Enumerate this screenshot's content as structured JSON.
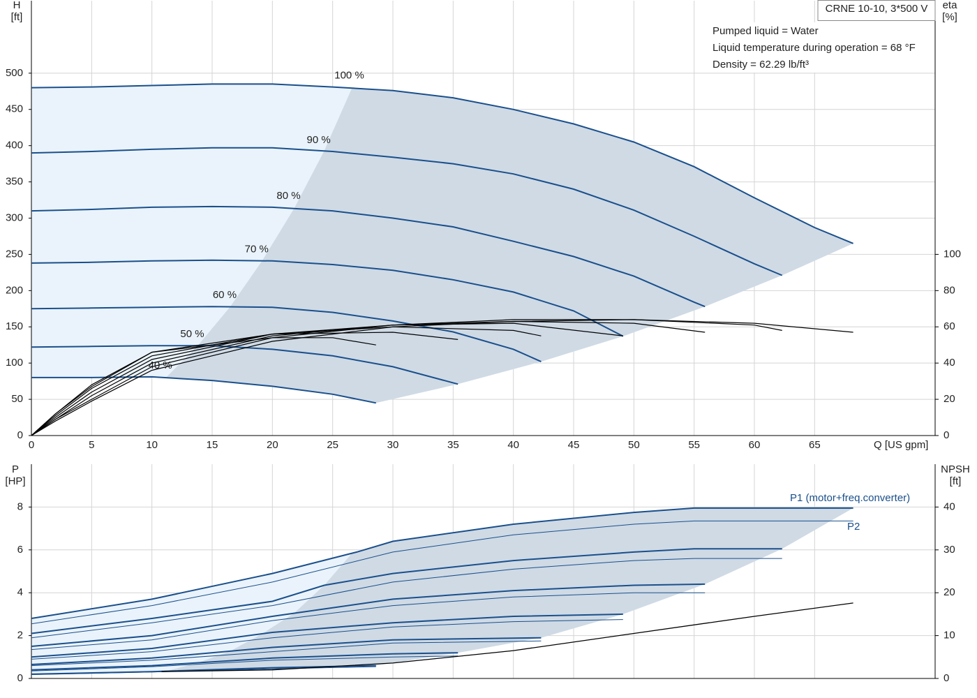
{
  "chart_data": [
    {
      "type": "line",
      "title": "CRNE 10-10, 3*500 V",
      "notes": [
        "Pumped liquid = Water",
        "Liquid temperature during operation = 68 °F",
        "Density = 62.29 lb/ft³"
      ],
      "x_label": "Q [US gpm]",
      "y_label": [
        "H",
        "[ft]"
      ],
      "y2_label": [
        "eta",
        "[%]"
      ],
      "xlim": [
        0,
        75
      ],
      "xticks": [
        0,
        5,
        10,
        15,
        20,
        25,
        30,
        35,
        40,
        45,
        50,
        55,
        60,
        65
      ],
      "ylim": [
        0,
        600
      ],
      "yticks": [
        0,
        50,
        100,
        150,
        200,
        250,
        300,
        350,
        400,
        450,
        500
      ],
      "y2lim": [
        0,
        240
      ],
      "y2ticks": [
        0,
        20,
        40,
        60,
        80,
        100
      ],
      "grid": true,
      "x_tick_labels": true,
      "operating_range_color": "#cfdae5",
      "extended_range_color": "#eaf3fb",
      "series": [
        {
          "name": "100 %",
          "color": "#1a4f8b",
          "line_width": 2,
          "x": [
            0,
            5,
            10,
            15,
            20,
            25,
            30,
            35,
            40,
            45,
            50,
            55,
            60,
            65,
            68.2
          ],
          "values": [
            480,
            481,
            483,
            485,
            485,
            481,
            476,
            466,
            450,
            430,
            405,
            371,
            328,
            287,
            265
          ]
        },
        {
          "name": "90 %",
          "color": "#1a4f8b",
          "line_width": 2,
          "x": [
            0,
            5,
            10,
            15,
            20,
            25,
            30,
            35,
            40,
            45,
            50,
            55,
            60,
            62.3
          ],
          "values": [
            390,
            392,
            395,
            397,
            397,
            392,
            384,
            375,
            361,
            340,
            311,
            275,
            237,
            221
          ]
        },
        {
          "name": "80 %",
          "color": "#1a4f8b",
          "line_width": 2,
          "x": [
            0,
            5,
            10,
            15,
            20,
            25,
            30,
            35,
            40,
            45,
            50,
            55,
            55.9
          ],
          "values": [
            310,
            312,
            315,
            316,
            315,
            310,
            300,
            288,
            268,
            247,
            220,
            184,
            178
          ]
        },
        {
          "name": "70 %",
          "color": "#1a4f8b",
          "line_width": 2,
          "x": [
            0,
            5,
            10,
            15,
            20,
            25,
            30,
            35,
            40,
            45,
            49.1
          ],
          "values": [
            238,
            239,
            241,
            242,
            241,
            236,
            228,
            215,
            198,
            172,
            137
          ]
        },
        {
          "name": "60 %",
          "color": "#1a4f8b",
          "line_width": 2,
          "x": [
            0,
            5,
            10,
            15,
            20,
            25,
            30,
            35,
            40,
            42.3
          ],
          "values": [
            175,
            176,
            177,
            178,
            177,
            170,
            158,
            143,
            119,
            102
          ]
        },
        {
          "name": "50 %",
          "color": "#1a4f8b",
          "line_width": 2,
          "x": [
            0,
            5,
            10,
            15,
            20,
            25,
            30,
            35.4
          ],
          "values": [
            122,
            123,
            124,
            124,
            119,
            110,
            95,
            71
          ]
        },
        {
          "name": "40 %",
          "color": "#1a4f8b",
          "line_width": 2,
          "x": [
            0,
            5,
            10,
            15,
            20,
            25,
            28.6
          ],
          "values": [
            80,
            80,
            81,
            76,
            68,
            57,
            45
          ]
        },
        {
          "axis": "y2",
          "color": "#000000",
          "line_width": 1.2,
          "x": [
            0,
            2,
            5,
            10,
            20,
            30,
            40,
            50,
            60,
            68.2
          ],
          "values": [
            0,
            8,
            19,
            36,
            52,
            60,
            63,
            64,
            62,
            57
          ]
        },
        {
          "axis": "y2",
          "color": "#000000",
          "line_width": 1.2,
          "x": [
            0,
            2,
            5,
            10,
            20,
            30,
            40,
            50,
            60,
            62.3
          ],
          "values": [
            0,
            9,
            20,
            38,
            54,
            61,
            64,
            64,
            61,
            58
          ]
        },
        {
          "axis": "y2",
          "color": "#000000",
          "line_width": 1.2,
          "x": [
            0,
            2,
            5,
            10,
            20,
            30,
            40,
            50,
            55.9
          ],
          "values": [
            0,
            9,
            22,
            40,
            55,
            61,
            63,
            62,
            57
          ]
        },
        {
          "axis": "y2",
          "color": "#000000",
          "line_width": 1.2,
          "x": [
            0,
            2,
            5,
            10,
            20,
            30,
            40,
            49.1
          ],
          "values": [
            0,
            10,
            24,
            42,
            56,
            61,
            62,
            55
          ]
        },
        {
          "axis": "y2",
          "color": "#000000",
          "line_width": 1.2,
          "x": [
            0,
            2,
            5,
            10,
            20,
            30,
            40,
            42.3
          ],
          "values": [
            0,
            11,
            26,
            44,
            56,
            60,
            58,
            55
          ]
        },
        {
          "axis": "y2",
          "color": "#000000",
          "line_width": 1.2,
          "x": [
            0,
            2,
            5,
            10,
            20,
            30,
            35.4
          ],
          "values": [
            0,
            12,
            27,
            46,
            56,
            57,
            53
          ]
        },
        {
          "axis": "y2",
          "color": "#000000",
          "line_width": 1.2,
          "x": [
            0,
            2,
            5,
            10,
            20,
            25,
            28.6
          ],
          "values": [
            0,
            12,
            28,
            46,
            54,
            54,
            50
          ]
        }
      ]
    },
    {
      "type": "line",
      "y_label": [
        "P",
        "[HP]"
      ],
      "y2_label": [
        "NPSH",
        "[ft]"
      ],
      "annotations": [
        "P1 (motor+freq.converter)",
        "P2"
      ],
      "annotation_color": "#1a4f8b",
      "xlim": [
        0,
        75
      ],
      "xticks": [
        0,
        5,
        10,
        15,
        20,
        25,
        30,
        35,
        40,
        45,
        50,
        55,
        60,
        65
      ],
      "ylim": [
        0,
        10
      ],
      "yticks": [
        0,
        2,
        4,
        6,
        8
      ],
      "y2lim": [
        0,
        50
      ],
      "y2ticks": [
        0,
        10,
        20,
        30,
        40
      ],
      "grid": true,
      "x_tick_labels": false,
      "operating_range_color": "#cfdae5",
      "extended_range_color": "#eaf3fb",
      "series": [
        {
          "color": "#1a4f8b",
          "line_width": 2,
          "x": [
            0,
            10,
            20,
            27,
            30,
            40,
            50,
            55,
            68.2
          ],
          "values": [
            2.8,
            3.7,
            4.9,
            5.9,
            6.4,
            7.2,
            7.75,
            7.95,
            7.95
          ]
        },
        {
          "color": "#1a4f8b",
          "line_width": 2,
          "x": [
            0,
            10,
            20,
            24.3,
            30,
            40,
            50,
            55,
            62.3
          ],
          "values": [
            2.1,
            2.8,
            3.6,
            4.35,
            4.9,
            5.5,
            5.9,
            6.05,
            6.05
          ]
        },
        {
          "color": "#1a4f8b",
          "line_width": 2,
          "x": [
            0,
            10,
            20,
            30,
            40,
            50,
            55.9
          ],
          "values": [
            1.5,
            2.0,
            2.9,
            3.7,
            4.1,
            4.35,
            4.4
          ]
        },
        {
          "color": "#1a4f8b",
          "line_width": 2,
          "x": [
            0,
            10,
            20,
            30,
            40,
            49.1
          ],
          "values": [
            1.0,
            1.4,
            2.15,
            2.6,
            2.9,
            3.0
          ]
        },
        {
          "color": "#1a4f8b",
          "line_width": 2,
          "x": [
            0,
            10,
            20,
            30,
            42.3
          ],
          "values": [
            0.65,
            0.95,
            1.45,
            1.8,
            1.9
          ]
        },
        {
          "color": "#1a4f8b",
          "line_width": 2,
          "x": [
            0,
            10,
            20,
            30,
            35.4
          ],
          "values": [
            0.4,
            0.6,
            0.95,
            1.15,
            1.2
          ]
        },
        {
          "color": "#1a4f8b",
          "line_width": 2,
          "x": [
            0,
            10,
            20,
            28.6
          ],
          "values": [
            0.2,
            0.32,
            0.5,
            0.6
          ]
        },
        {
          "color": "#1a4f8b",
          "line_width": 1,
          "x": [
            0,
            10,
            20,
            30,
            40,
            50,
            55,
            68.2
          ],
          "values": [
            2.55,
            3.4,
            4.5,
            5.9,
            6.7,
            7.2,
            7.35,
            7.35
          ]
        },
        {
          "color": "#1a4f8b",
          "line_width": 1,
          "x": [
            0,
            10,
            20,
            30,
            40,
            50,
            55,
            62.3
          ],
          "values": [
            1.9,
            2.6,
            3.4,
            4.5,
            5.1,
            5.5,
            5.6,
            5.6
          ]
        },
        {
          "color": "#1a4f8b",
          "line_width": 1,
          "x": [
            0,
            10,
            20,
            30,
            40,
            50,
            55.9
          ],
          "values": [
            1.35,
            1.8,
            2.7,
            3.4,
            3.8,
            4.0,
            4.0
          ]
        },
        {
          "color": "#1a4f8b",
          "line_width": 1,
          "x": [
            0,
            10,
            20,
            30,
            40,
            49.1
          ],
          "values": [
            0.9,
            1.25,
            1.9,
            2.4,
            2.65,
            2.75
          ]
        },
        {
          "color": "#1a4f8b",
          "line_width": 1,
          "x": [
            0,
            10,
            20,
            30,
            42.3
          ],
          "values": [
            0.6,
            0.85,
            1.25,
            1.65,
            1.75
          ]
        },
        {
          "color": "#1a4f8b",
          "line_width": 1,
          "x": [
            0,
            10,
            20,
            30,
            35.4
          ],
          "values": [
            0.35,
            0.55,
            0.85,
            1.0,
            1.05
          ]
        },
        {
          "color": "#1a4f8b",
          "line_width": 1,
          "x": [
            0,
            10,
            20,
            28.6
          ],
          "values": [
            0.18,
            0.3,
            0.45,
            0.55
          ]
        },
        {
          "axis": "y2",
          "color": "#000000",
          "line_width": 1.3,
          "x": [
            10.8,
            20,
            30,
            40,
            50,
            60,
            68.2
          ],
          "values": [
            1.6,
            2,
            3.6,
            6.5,
            10.5,
            14.5,
            17.6
          ]
        }
      ]
    }
  ]
}
